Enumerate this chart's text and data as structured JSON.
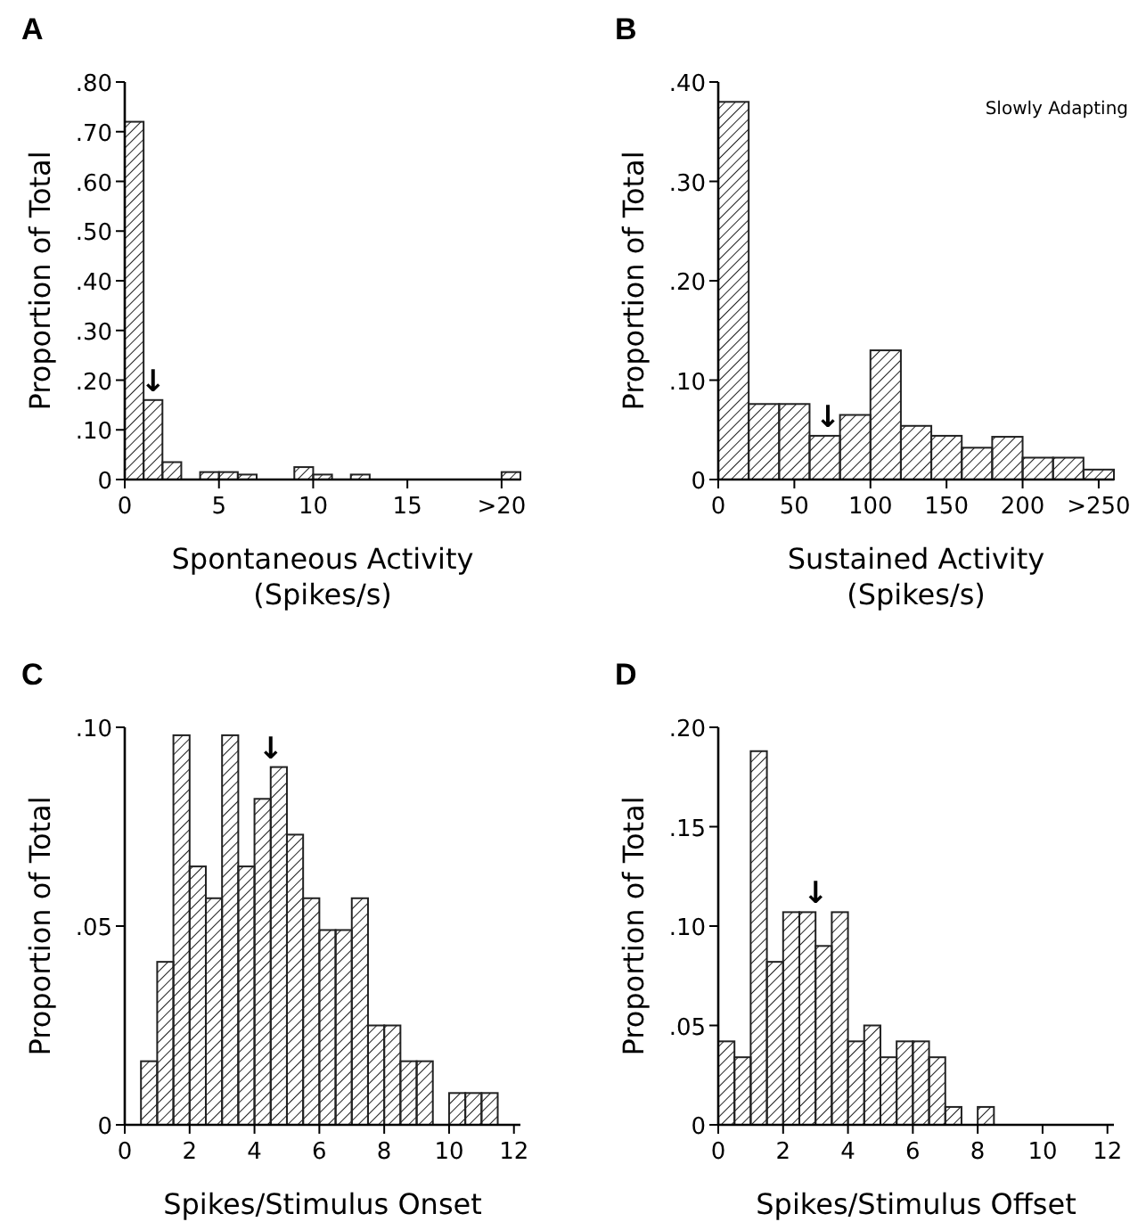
{
  "chart_data": [
    {
      "type": "histogram",
      "title": "A",
      "xlabel": "Spontaneous Activity\n(Spikes/s)",
      "ylabel": "Proportion of Total",
      "color": "#222222",
      "bins": [
        0,
        1,
        2,
        3,
        4,
        5,
        6,
        7,
        8,
        9,
        10,
        11,
        12,
        13,
        14,
        15,
        16,
        17,
        18,
        19,
        20,
        21
      ],
      "values": [
        0.72,
        0.16,
        0.035,
        0,
        0.015,
        0.015,
        0.01,
        0,
        0,
        0.025,
        0.01,
        0,
        0.01,
        0,
        0,
        0,
        0,
        0,
        0,
        0,
        0.015
      ],
      "xlim": [
        0,
        21
      ],
      "xticks": [
        0,
        5,
        10,
        15,
        {
          "value": 20,
          "label": ">20"
        }
      ],
      "ylim": [
        0,
        0.8
      ],
      "yticks": [
        {
          "value": 0,
          "label": "0"
        },
        {
          "value": 0.1,
          "label": ".10"
        },
        {
          "value": 0.2,
          "label": ".20"
        },
        {
          "value": 0.3,
          "label": ".30"
        },
        {
          "value": 0.4,
          "label": ".40"
        },
        {
          "value": 0.5,
          "label": ".50"
        },
        {
          "value": 0.6,
          "label": ".60"
        },
        {
          "value": 0.7,
          "label": ".70"
        },
        {
          "value": 0.8,
          "label": ".80"
        }
      ],
      "annotations": [
        {
          "text": "↓",
          "x": 1.5,
          "y": 0.16
        }
      ]
    },
    {
      "type": "histogram",
      "title": "B",
      "xlabel": "Sustained Activity\n(Spikes/s)",
      "ylabel": "Proportion of Total",
      "color": "#222222",
      "bins": [
        0,
        20,
        40,
        60,
        80,
        100,
        120,
        140,
        160,
        180,
        200,
        220,
        240,
        260
      ],
      "values": [
        0.38,
        0.076,
        0.076,
        0.044,
        0.065,
        0.13,
        0.054,
        0.044,
        0.032,
        0.043,
        0.022,
        0.022,
        0.01
      ],
      "xlim": [
        0,
        260
      ],
      "xticks": [
        0,
        50,
        100,
        150,
        200,
        {
          "value": 250,
          "label": ">250"
        }
      ],
      "ylim": [
        0,
        0.4
      ],
      "yticks": [
        {
          "value": 0,
          "label": "0"
        },
        {
          "value": 0.1,
          "label": ".10"
        },
        {
          "value": 0.2,
          "label": ".20"
        },
        {
          "value": 0.3,
          "label": ".30"
        },
        {
          "value": 0.4,
          "label": ".40"
        }
      ],
      "annotations": [
        "Slowly Adapting",
        {
          "text": "↓",
          "x": 72,
          "y": 0.044
        }
      ]
    },
    {
      "type": "histogram",
      "title": "C",
      "xlabel": "Spikes/Stimulus Onset",
      "ylabel": "Proportion of Total",
      "color": "#222222",
      "bins": [
        0.5,
        1,
        1.5,
        2,
        2.5,
        3,
        3.5,
        4,
        4.5,
        5,
        5.5,
        6,
        6.5,
        7,
        7.5,
        8,
        8.5,
        9,
        9.5,
        10,
        10.5,
        11,
        11.5
      ],
      "values": [
        0.016,
        0.041,
        0.098,
        0.065,
        0.057,
        0.098,
        0.065,
        0.082,
        0.09,
        0.073,
        0.057,
        0.049,
        0.049,
        0.057,
        0.025,
        0.025,
        0.016,
        0.016,
        0,
        0.008,
        0.008,
        0.008
      ],
      "xlim": [
        0,
        12.2
      ],
      "xticks": [
        0,
        2,
        4,
        6,
        8,
        10,
        12
      ],
      "ylim": [
        0,
        0.1
      ],
      "yticks": [
        {
          "value": 0,
          "label": "0"
        },
        {
          "value": 0.05,
          "label": ".05"
        },
        {
          "value": 0.1,
          "label": ".10"
        }
      ],
      "annotations": [
        {
          "text": "↓",
          "x": 4.5,
          "y": 0.09
        }
      ]
    },
    {
      "type": "histogram",
      "title": "D",
      "xlabel": "Spikes/Stimulus Offset",
      "ylabel": "Proportion of Total",
      "color": "#222222",
      "bins": [
        0,
        0.5,
        1,
        1.5,
        2,
        2.5,
        3,
        3.5,
        4,
        4.5,
        5,
        5.5,
        6,
        6.5,
        7,
        7.5,
        8,
        8.5
      ],
      "values": [
        0.042,
        0.034,
        0.188,
        0.082,
        0.107,
        0.107,
        0.09,
        0.107,
        0.042,
        0.05,
        0.034,
        0.042,
        0.042,
        0.034,
        0.009,
        0,
        0.009
      ],
      "xlim": [
        0,
        12.2
      ],
      "xticks": [
        0,
        2,
        4,
        6,
        8,
        10,
        12
      ],
      "ylim": [
        0,
        0.2
      ],
      "yticks": [
        {
          "value": 0,
          "label": "0"
        },
        {
          "value": 0.05,
          "label": ".05"
        },
        {
          "value": 0.1,
          "label": ".10"
        },
        {
          "value": 0.15,
          "label": ".15"
        },
        {
          "value": 0.2,
          "label": ".20"
        }
      ],
      "annotations": [
        {
          "text": "↓",
          "x": 3,
          "y": 0.107
        }
      ]
    }
  ]
}
